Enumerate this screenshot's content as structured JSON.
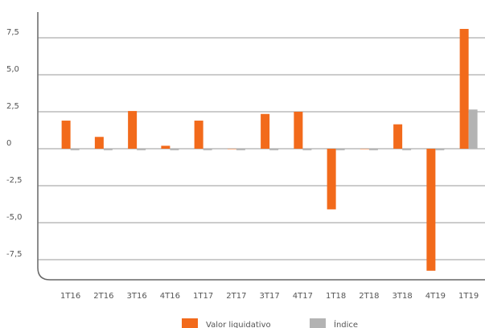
{
  "chart_data": {
    "type": "bar",
    "categories": [
      "1T16",
      "2T16",
      "3T16",
      "4T16",
      "1T17",
      "2T17",
      "3T17",
      "4T17",
      "1T18",
      "2T18",
      "3T18",
      "4T19",
      "1T19"
    ],
    "series": [
      {
        "name": "Valor liquidativo",
        "color": "#f26a1b",
        "values": [
          1.9,
          0.8,
          2.55,
          0.2,
          1.9,
          0,
          2.35,
          2.5,
          -4.1,
          0,
          1.65,
          -8.25,
          8.1
        ]
      },
      {
        "name": "Índice",
        "color": "#b3b3b3",
        "values": [
          -0.1,
          -0.1,
          -0.1,
          -0.1,
          -0.1,
          -0.1,
          -0.1,
          -0.1,
          -0.1,
          -0.1,
          -0.1,
          -0.1,
          2.65
        ]
      }
    ],
    "ylim": [
      -8.86,
      9.24
    ],
    "yticks": [
      {
        "value": 7.5,
        "label": "7,5"
      },
      {
        "value": 5,
        "label": "5,0"
      },
      {
        "value": 2.5,
        "label": "2,5"
      },
      0,
      {
        "value": -2.5,
        "label": "-2,5"
      },
      {
        "value": -5,
        "label": "-5,0"
      },
      {
        "value": -7.5,
        "label": "-7,5"
      }
    ],
    "grid": true
  }
}
